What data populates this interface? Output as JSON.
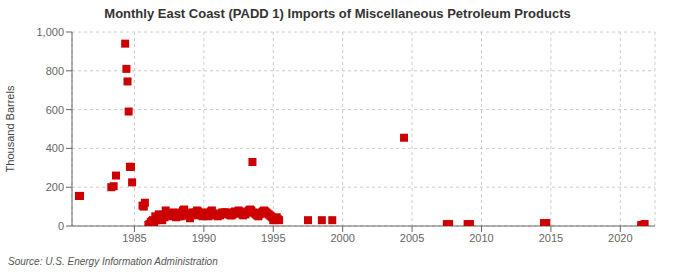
{
  "chart_data": {
    "type": "scatter",
    "title": "Monthly East Coast (PADD 1) Imports of Miscellaneous Petroleum Products",
    "y_label": "Thousand Barrels",
    "annotations": [
      "Source: U.S. Energy Information Administration"
    ],
    "color": "#cc0000",
    "marker": "square",
    "grid": true,
    "xlim": [
      1980.5,
      2022.5
    ],
    "ylim": [
      0,
      1000
    ],
    "xticks": [
      1985,
      1990,
      1995,
      2000,
      2005,
      2010,
      2015,
      2020
    ],
    "yticks": [
      0,
      200,
      400,
      600,
      800,
      {
        "value": 1000,
        "label": "1,000"
      }
    ],
    "x": [
      1981.0,
      1981.08,
      1983.33,
      1983.5,
      1983.67,
      1984.33,
      1984.42,
      1984.5,
      1984.58,
      1984.67,
      1984.75,
      1984.83,
      1985.58,
      1985.67,
      1985.75,
      1986.0,
      1986.08,
      1986.17,
      1986.25,
      1986.33,
      1986.42,
      1986.5,
      1986.58,
      1986.67,
      1986.75,
      1986.83,
      1986.92,
      1987.0,
      1987.08,
      1987.17,
      1987.25,
      1987.33,
      1987.42,
      1987.5,
      1987.58,
      1987.67,
      1987.75,
      1987.83,
      1987.92,
      1988.0,
      1988.08,
      1988.17,
      1988.25,
      1988.33,
      1988.42,
      1988.5,
      1988.58,
      1988.67,
      1988.75,
      1988.83,
      1988.92,
      1989.0,
      1989.08,
      1989.17,
      1989.25,
      1989.33,
      1989.42,
      1989.5,
      1989.58,
      1989.67,
      1989.75,
      1989.83,
      1989.92,
      1990.0,
      1990.08,
      1990.17,
      1990.25,
      1990.33,
      1990.42,
      1990.5,
      1990.58,
      1990.67,
      1990.75,
      1990.83,
      1990.92,
      1991.0,
      1991.08,
      1991.17,
      1991.25,
      1991.33,
      1991.42,
      1991.5,
      1991.58,
      1991.67,
      1991.75,
      1991.83,
      1991.92,
      1992.0,
      1992.08,
      1992.17,
      1992.25,
      1992.33,
      1992.42,
      1992.5,
      1992.58,
      1992.67,
      1992.75,
      1992.83,
      1992.92,
      1993.0,
      1993.08,
      1993.17,
      1993.25,
      1993.33,
      1993.42,
      1993.5,
      1993.58,
      1993.67,
      1993.75,
      1993.83,
      1993.92,
      1994.0,
      1994.08,
      1994.17,
      1994.25,
      1994.33,
      1994.42,
      1994.5,
      1994.58,
      1994.67,
      1994.75,
      1994.83,
      1994.92,
      1995.0,
      1995.08,
      1995.17,
      1995.25,
      1995.33,
      1995.42,
      1997.5,
      1998.5,
      1999.25,
      2004.42,
      2007.5,
      2007.67,
      2009.0,
      2009.17,
      2014.5,
      2014.67,
      2021.5,
      2021.75
    ],
    "values": [
      155,
      155,
      200,
      205,
      260,
      940,
      810,
      745,
      590,
      305,
      305,
      225,
      105,
      100,
      120,
      5,
      10,
      20,
      25,
      30,
      15,
      50,
      30,
      40,
      60,
      40,
      35,
      30,
      50,
      45,
      80,
      60,
      55,
      65,
      65,
      55,
      50,
      70,
      60,
      45,
      55,
      50,
      65,
      50,
      70,
      80,
      85,
      55,
      60,
      55,
      55,
      40,
      65,
      70,
      60,
      55,
      70,
      80,
      75,
      65,
      65,
      55,
      50,
      65,
      70,
      55,
      60,
      50,
      65,
      75,
      80,
      65,
      60,
      55,
      60,
      50,
      60,
      55,
      65,
      70,
      65,
      70,
      65,
      70,
      60,
      60,
      55,
      55,
      60,
      70,
      75,
      65,
      70,
      80,
      75,
      65,
      60,
      55,
      65,
      60,
      70,
      75,
      80,
      85,
      80,
      330,
      70,
      65,
      60,
      55,
      50,
      60,
      65,
      70,
      75,
      80,
      75,
      70,
      65,
      60,
      55,
      50,
      45,
      30,
      35,
      40,
      45,
      35,
      30,
      30,
      30,
      30,
      455,
      10,
      10,
      10,
      10,
      15,
      15,
      5,
      10
    ]
  }
}
